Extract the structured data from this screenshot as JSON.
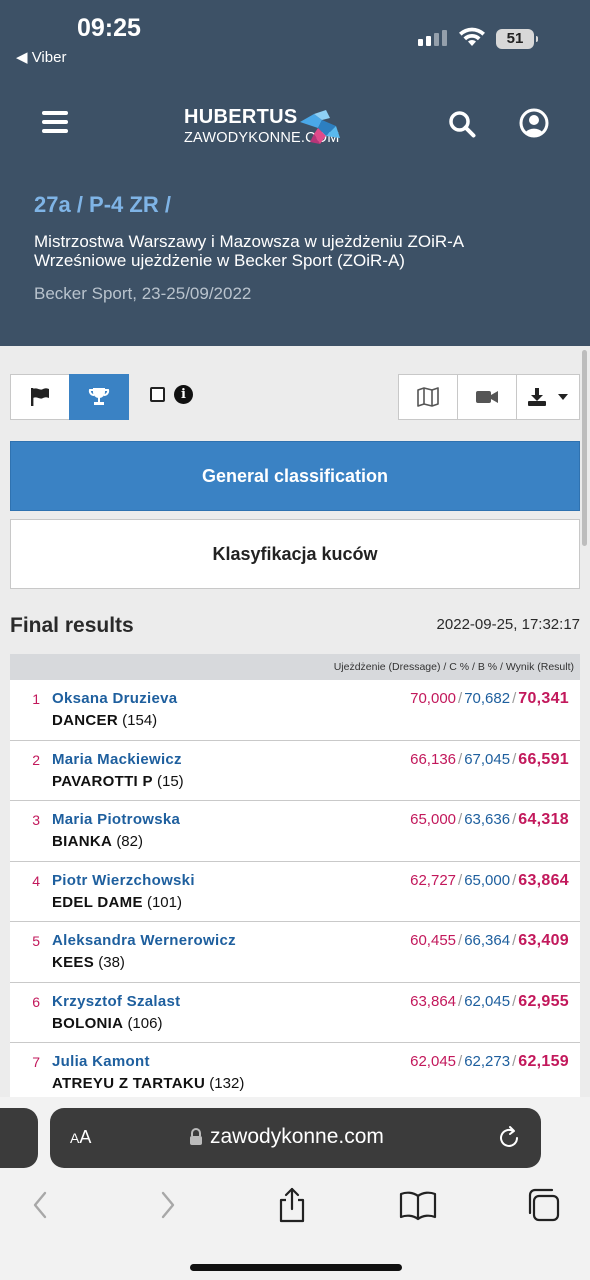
{
  "status": {
    "time": "09:25",
    "back_app": "◀ Viber",
    "battery": "51"
  },
  "header": {
    "logo_line1": "HUBERTUS",
    "logo_line2": "ZAWODYKONNE.COM"
  },
  "event": {
    "breadcrumb": "27a / P-4 ZR /",
    "title_line1": "Mistrzostwa Warszawy i Mazowsza w ujeżdżeniu ZOiR-A",
    "title_line2": "Wrześniowe ujeżdżenie w Becker Sport (ZOiR-A)",
    "venue": "Becker Sport, 23-25/09/2022"
  },
  "classifications": {
    "general": "General classification",
    "kucow": "Klasyfikacja kuców"
  },
  "results": {
    "heading": "Final results",
    "timestamp": "2022-09-25, 17:32:17",
    "column_header": "Ujeżdżenie (Dressage) / C % / B % / Wynik (Result)",
    "rows": [
      {
        "rank": "1",
        "rider": "Oksana Druzieva",
        "horse": "DANCER",
        "horse_no": "(154)",
        "c": "70,000",
        "b": "70,682",
        "result": "70,341"
      },
      {
        "rank": "2",
        "rider": "Maria Mackiewicz",
        "horse": "PAVAROTTI P",
        "horse_no": "(15)",
        "c": "66,136",
        "b": "67,045",
        "result": "66,591"
      },
      {
        "rank": "3",
        "rider": "Maria Piotrowska",
        "horse": "BIANKA",
        "horse_no": "(82)",
        "c": "65,000",
        "b": "63,636",
        "result": "64,318"
      },
      {
        "rank": "4",
        "rider": "Piotr Wierzchowski",
        "horse": "EDEL DAME",
        "horse_no": "(101)",
        "c": "62,727",
        "b": "65,000",
        "result": "63,864"
      },
      {
        "rank": "5",
        "rider": "Aleksandra Wernerowicz",
        "horse": "KEES",
        "horse_no": "(38)",
        "c": "60,455",
        "b": "66,364",
        "result": "63,409"
      },
      {
        "rank": "6",
        "rider": "Krzysztof Szalast",
        "horse": "BOLONIA",
        "horse_no": "(106)",
        "c": "63,864",
        "b": "62,045",
        "result": "62,955"
      },
      {
        "rank": "7",
        "rider": "Julia Kamont",
        "horse": "ATREYU Z TARTAKU",
        "horse_no": "(132)",
        "c": "62,045",
        "b": "62,273",
        "result": "62,159"
      }
    ]
  },
  "browser": {
    "aa_label": "AA",
    "url": "zawodykonne.com"
  },
  "colors": {
    "header_bg": "#3d5166",
    "accent": "#3a82c4",
    "rank": "#c2185b",
    "rider": "#1e5f9e"
  },
  "icons": [
    "flag-icon",
    "trophy-icon",
    "info-icon",
    "map-icon",
    "video-camera-icon",
    "download-icon",
    "caret-down-icon",
    "search-icon",
    "user-icon",
    "lock-icon",
    "reload-icon",
    "back-icon",
    "forward-icon",
    "share-icon",
    "bookmarks-icon",
    "tabs-icon"
  ]
}
